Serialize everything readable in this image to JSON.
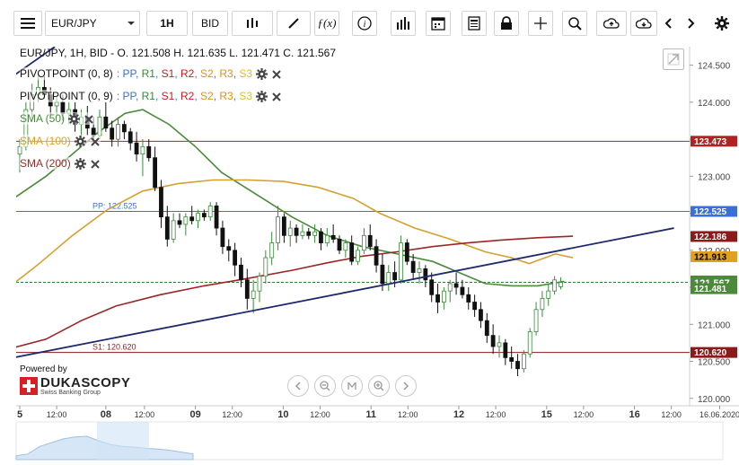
{
  "toolbar": {
    "menu_icon": "hamburger-menu-icon",
    "symbol": "EUR/JPY",
    "timeframe": "1H",
    "side": "BID",
    "icons": [
      "candlestick-icon",
      "draw-line-icon",
      "function-icon",
      "info-icon",
      "volume-bars-icon",
      "calendar-icon",
      "news-icon",
      "lock-icon",
      "crosshair-icon",
      "zoom-icon",
      "cloud-upload-icon",
      "cloud-download-icon",
      "chevron-left-icon",
      "chevron-right-icon",
      "gear-icon"
    ]
  },
  "ohlc_label": "EUR/JPY, 1H, BID - O. 121.508 H. 121.635 L. 121.471 C. 121.567",
  "indicators": [
    {
      "label": "PIVOTPOINT (0, 8)",
      "parts": [
        ": ",
        "PP",
        ", ",
        "R1",
        ", ",
        "S1",
        ", ",
        "R2",
        ", ",
        "S2",
        ", ",
        "R3",
        ", ",
        "S3"
      ]
    },
    {
      "label": "PIVOTPOINT (0, 9)",
      "parts": [
        ": ",
        "PP",
        ", ",
        "R1",
        ", ",
        "S1",
        ", ",
        "R2",
        ", ",
        "S2",
        ", ",
        "R3",
        ", ",
        "S3"
      ]
    },
    {
      "label": "SMA (50)",
      "color": "#4a8a3a"
    },
    {
      "label": "SMA (100)",
      "color": "#e0a020"
    },
    {
      "label": "SMA (200)",
      "color": "#a02828"
    }
  ],
  "pivot_colors": {
    "PP": "#3a6fd8",
    "R1": "#2f8f2f",
    "S1": "#c02020",
    "R2": "#c02020",
    "S2": "#e09020",
    "R3": "#e09020",
    "S3": "#e0c020"
  },
  "branding": {
    "powered": "Powered by",
    "name": "DUKASCOPY",
    "sub": "Swiss Banking Group"
  },
  "nav_icons": [
    "scroll-left-icon",
    "zoom-out-icon",
    "reset-zoom-icon",
    "zoom-in-icon",
    "scroll-right-icon"
  ],
  "chart_data": {
    "type": "candlestick",
    "symbol": "EUR/JPY",
    "timeframe": "1H",
    "y_range": [
      119.9,
      124.75
    ],
    "y_ticks": [
      "124.500",
      "124.000",
      "123.500",
      "123.000",
      "122.500",
      "122.000",
      "121.500",
      "121.000",
      "120.500",
      "120.000"
    ],
    "x_ticks": [
      "5",
      "12:00",
      "08",
      "12:00",
      "09",
      "12:00",
      "10",
      "12:00",
      "11",
      "12:00",
      "12",
      "12:00",
      "15",
      "12:00",
      "16",
      "12:00",
      "16.06.2020"
    ],
    "x_tick_bold": [
      true,
      false,
      true,
      false,
      true,
      false,
      true,
      false,
      true,
      false,
      true,
      false,
      true,
      false,
      true,
      false,
      false
    ],
    "price_labels": [
      {
        "text": "123.473",
        "value": 123.473,
        "bg": "#b22222",
        "fg": "#ffffff"
      },
      {
        "text": "122.525",
        "value": 122.525,
        "bg": "#3a6fd8",
        "fg": "#ffffff"
      },
      {
        "text": "122.186",
        "value": 122.186,
        "bg": "#8b1a1a",
        "fg": "#ffffff"
      },
      {
        "text": "121.913",
        "value": 121.913,
        "bg": "#e0a020",
        "fg": "#000000"
      },
      {
        "text": "121.567",
        "value": 121.567,
        "bg": "#4a8a3a",
        "fg": "#ffffff"
      },
      {
        "text": "121.481",
        "value": 121.481,
        "bg": "#4a8a3a",
        "fg": "#ffffff"
      },
      {
        "text": "120.620",
        "value": 120.62,
        "bg": "#8b1a1a",
        "fg": "#ffffff"
      }
    ],
    "levels": [
      {
        "name": "R1",
        "value": 123.473,
        "label": "",
        "color": "#b22222"
      },
      {
        "name": "PP",
        "value": 122.525,
        "label": "PP: 122.525",
        "color": "#3a6fd8"
      },
      {
        "name": "S1",
        "value": 120.62,
        "label": "S1: 120.620",
        "color": "#8b1a1a"
      },
      {
        "name": "last",
        "value": 121.567,
        "label": "",
        "color": "#2e7d2e"
      }
    ],
    "trendlines": [
      {
        "from": [
          -0.5,
          120.45
        ],
        "to": [
          7.45,
          122.3
        ],
        "color": "#1f2a6b"
      },
      {
        "from": [
          -0.5,
          124.0
        ],
        "to": [
          0.4,
          124.75
        ],
        "color": "#1f2a6b"
      }
    ],
    "candles": [
      {
        "t": 0.0,
        "o": 123.3,
        "h": 123.5,
        "l": 123.05,
        "c": 123.4
      },
      {
        "t": 0.07,
        "o": 123.4,
        "h": 124.0,
        "l": 123.35,
        "c": 123.9
      },
      {
        "t": 0.14,
        "o": 123.9,
        "h": 124.25,
        "l": 123.75,
        "c": 124.1
      },
      {
        "t": 0.21,
        "o": 124.1,
        "h": 124.35,
        "l": 124.0,
        "c": 124.2
      },
      {
        "t": 0.28,
        "o": 124.2,
        "h": 124.35,
        "l": 124.05,
        "c": 124.1
      },
      {
        "t": 0.35,
        "o": 124.1,
        "h": 124.2,
        "l": 123.8,
        "c": 123.95
      },
      {
        "t": 0.42,
        "o": 123.95,
        "h": 124.1,
        "l": 123.8,
        "c": 124.0
      },
      {
        "t": 0.49,
        "o": 124.0,
        "h": 124.1,
        "l": 123.75,
        "c": 123.85
      },
      {
        "t": 0.56,
        "o": 123.85,
        "h": 124.0,
        "l": 123.7,
        "c": 123.9
      },
      {
        "t": 0.63,
        "o": 123.9,
        "h": 124.0,
        "l": 123.6,
        "c": 123.7
      },
      {
        "t": 0.7,
        "o": 123.7,
        "h": 123.9,
        "l": 123.5,
        "c": 123.8
      },
      {
        "t": 0.77,
        "o": 123.8,
        "h": 123.95,
        "l": 123.55,
        "c": 123.65
      },
      {
        "t": 0.84,
        "o": 123.65,
        "h": 123.8,
        "l": 123.45,
        "c": 123.55
      },
      {
        "t": 0.91,
        "o": 123.55,
        "h": 123.9,
        "l": 123.5,
        "c": 123.8
      },
      {
        "t": 0.98,
        "o": 123.8,
        "h": 124.0,
        "l": 123.6,
        "c": 123.65
      },
      {
        "t": 1.05,
        "o": 123.65,
        "h": 123.75,
        "l": 123.4,
        "c": 123.5
      },
      {
        "t": 1.12,
        "o": 123.5,
        "h": 123.8,
        "l": 123.4,
        "c": 123.7
      },
      {
        "t": 1.19,
        "o": 123.7,
        "h": 123.75,
        "l": 123.5,
        "c": 123.6
      },
      {
        "t": 1.26,
        "o": 123.6,
        "h": 123.65,
        "l": 123.35,
        "c": 123.45
      },
      {
        "t": 1.33,
        "o": 123.45,
        "h": 123.6,
        "l": 123.2,
        "c": 123.3
      },
      {
        "t": 1.4,
        "o": 123.3,
        "h": 123.5,
        "l": 123.0,
        "c": 123.4
      },
      {
        "t": 1.47,
        "o": 123.4,
        "h": 123.5,
        "l": 123.2,
        "c": 123.25
      },
      {
        "t": 1.54,
        "o": 123.25,
        "h": 123.4,
        "l": 122.8,
        "c": 122.85
      },
      {
        "t": 1.61,
        "o": 122.85,
        "h": 122.95,
        "l": 122.3,
        "c": 122.45
      },
      {
        "t": 1.68,
        "o": 122.45,
        "h": 122.6,
        "l": 122.05,
        "c": 122.15
      },
      {
        "t": 1.75,
        "o": 122.15,
        "h": 122.5,
        "l": 122.1,
        "c": 122.4
      },
      {
        "t": 1.82,
        "o": 122.4,
        "h": 122.5,
        "l": 122.3,
        "c": 122.35
      },
      {
        "t": 1.89,
        "o": 122.35,
        "h": 122.5,
        "l": 122.2,
        "c": 122.45
      },
      {
        "t": 1.96,
        "o": 122.45,
        "h": 122.6,
        "l": 122.35,
        "c": 122.4
      },
      {
        "t": 2.03,
        "o": 122.4,
        "h": 122.55,
        "l": 122.3,
        "c": 122.5
      },
      {
        "t": 2.1,
        "o": 122.5,
        "h": 122.55,
        "l": 122.4,
        "c": 122.45
      },
      {
        "t": 2.17,
        "o": 122.45,
        "h": 122.65,
        "l": 122.4,
        "c": 122.6
      },
      {
        "t": 2.24,
        "o": 122.6,
        "h": 122.65,
        "l": 122.2,
        "c": 122.3
      },
      {
        "t": 2.31,
        "o": 122.3,
        "h": 122.4,
        "l": 121.95,
        "c": 122.05
      },
      {
        "t": 2.38,
        "o": 122.05,
        "h": 122.15,
        "l": 121.85,
        "c": 122.0
      },
      {
        "t": 2.45,
        "o": 122.0,
        "h": 122.1,
        "l": 121.65,
        "c": 121.8
      },
      {
        "t": 2.52,
        "o": 121.8,
        "h": 121.9,
        "l": 121.5,
        "c": 121.6
      },
      {
        "t": 2.59,
        "o": 121.6,
        "h": 121.75,
        "l": 121.2,
        "c": 121.35
      },
      {
        "t": 2.66,
        "o": 121.35,
        "h": 121.6,
        "l": 121.15,
        "c": 121.45
      },
      {
        "t": 2.73,
        "o": 121.45,
        "h": 121.7,
        "l": 121.3,
        "c": 121.65
      },
      {
        "t": 2.8,
        "o": 121.65,
        "h": 122.0,
        "l": 121.55,
        "c": 121.9
      },
      {
        "t": 2.87,
        "o": 121.9,
        "h": 122.25,
        "l": 121.8,
        "c": 122.1
      },
      {
        "t": 2.94,
        "o": 122.1,
        "h": 122.6,
        "l": 122.0,
        "c": 122.45
      },
      {
        "t": 3.01,
        "o": 122.45,
        "h": 122.5,
        "l": 122.1,
        "c": 122.2
      },
      {
        "t": 3.08,
        "o": 122.2,
        "h": 122.4,
        "l": 122.05,
        "c": 122.3
      },
      {
        "t": 3.15,
        "o": 122.3,
        "h": 122.35,
        "l": 122.1,
        "c": 122.2
      },
      {
        "t": 3.22,
        "o": 122.2,
        "h": 122.35,
        "l": 122.15,
        "c": 122.25
      },
      {
        "t": 3.29,
        "o": 122.25,
        "h": 122.3,
        "l": 122.15,
        "c": 122.2
      },
      {
        "t": 3.36,
        "o": 122.2,
        "h": 122.35,
        "l": 122.1,
        "c": 122.25
      },
      {
        "t": 3.43,
        "o": 122.25,
        "h": 122.3,
        "l": 122.0,
        "c": 122.1
      },
      {
        "t": 3.5,
        "o": 122.1,
        "h": 122.3,
        "l": 122.05,
        "c": 122.2
      },
      {
        "t": 3.57,
        "o": 122.2,
        "h": 122.35,
        "l": 122.1,
        "c": 122.15
      },
      {
        "t": 3.64,
        "o": 122.15,
        "h": 122.2,
        "l": 121.95,
        "c": 122.0
      },
      {
        "t": 3.71,
        "o": 122.0,
        "h": 122.15,
        "l": 121.9,
        "c": 122.1
      },
      {
        "t": 3.78,
        "o": 122.1,
        "h": 122.2,
        "l": 121.8,
        "c": 121.85
      },
      {
        "t": 3.85,
        "o": 121.85,
        "h": 122.05,
        "l": 121.8,
        "c": 122.0
      },
      {
        "t": 3.92,
        "o": 122.0,
        "h": 122.3,
        "l": 121.95,
        "c": 122.2
      },
      {
        "t": 3.99,
        "o": 122.2,
        "h": 122.35,
        "l": 122.0,
        "c": 122.05
      },
      {
        "t": 4.06,
        "o": 122.05,
        "h": 122.15,
        "l": 121.7,
        "c": 121.8
      },
      {
        "t": 4.13,
        "o": 121.8,
        "h": 121.95,
        "l": 121.45,
        "c": 121.55
      },
      {
        "t": 4.2,
        "o": 121.55,
        "h": 121.8,
        "l": 121.45,
        "c": 121.7
      },
      {
        "t": 4.27,
        "o": 121.7,
        "h": 121.85,
        "l": 121.5,
        "c": 121.6
      },
      {
        "t": 4.34,
        "o": 121.6,
        "h": 122.2,
        "l": 121.55,
        "c": 122.1
      },
      {
        "t": 4.41,
        "o": 122.1,
        "h": 122.15,
        "l": 121.8,
        "c": 121.85
      },
      {
        "t": 4.48,
        "o": 121.85,
        "h": 121.95,
        "l": 121.6,
        "c": 121.7
      },
      {
        "t": 4.55,
        "o": 121.7,
        "h": 121.85,
        "l": 121.55,
        "c": 121.75
      },
      {
        "t": 4.62,
        "o": 121.75,
        "h": 121.8,
        "l": 121.5,
        "c": 121.6
      },
      {
        "t": 4.69,
        "o": 121.6,
        "h": 121.7,
        "l": 121.3,
        "c": 121.4
      },
      {
        "t": 4.76,
        "o": 121.4,
        "h": 121.55,
        "l": 121.15,
        "c": 121.3
      },
      {
        "t": 4.83,
        "o": 121.3,
        "h": 121.5,
        "l": 121.2,
        "c": 121.45
      },
      {
        "t": 4.9,
        "o": 121.45,
        "h": 121.6,
        "l": 121.3,
        "c": 121.55
      },
      {
        "t": 4.97,
        "o": 121.55,
        "h": 121.7,
        "l": 121.4,
        "c": 121.5
      },
      {
        "t": 5.04,
        "o": 121.5,
        "h": 121.6,
        "l": 121.35,
        "c": 121.4
      },
      {
        "t": 5.11,
        "o": 121.4,
        "h": 121.5,
        "l": 121.2,
        "c": 121.3
      },
      {
        "t": 5.18,
        "o": 121.3,
        "h": 121.4,
        "l": 121.1,
        "c": 121.2
      },
      {
        "t": 5.25,
        "o": 121.2,
        "h": 121.3,
        "l": 120.95,
        "c": 121.05
      },
      {
        "t": 5.32,
        "o": 121.05,
        "h": 121.15,
        "l": 120.75,
        "c": 120.85
      },
      {
        "t": 5.39,
        "o": 120.85,
        "h": 121.0,
        "l": 120.6,
        "c": 120.7
      },
      {
        "t": 5.46,
        "o": 120.7,
        "h": 120.85,
        "l": 120.55,
        "c": 120.75
      },
      {
        "t": 5.53,
        "o": 120.75,
        "h": 120.8,
        "l": 120.45,
        "c": 120.55
      },
      {
        "t": 5.6,
        "o": 120.55,
        "h": 120.7,
        "l": 120.4,
        "c": 120.5
      },
      {
        "t": 5.67,
        "o": 120.5,
        "h": 120.6,
        "l": 120.3,
        "c": 120.4
      },
      {
        "t": 5.74,
        "o": 120.4,
        "h": 120.65,
        "l": 120.35,
        "c": 120.6
      },
      {
        "t": 5.81,
        "o": 120.6,
        "h": 120.95,
        "l": 120.55,
        "c": 120.9
      },
      {
        "t": 5.88,
        "o": 120.9,
        "h": 121.3,
        "l": 120.85,
        "c": 121.2
      },
      {
        "t": 5.95,
        "o": 121.2,
        "h": 121.45,
        "l": 121.1,
        "c": 121.35
      },
      {
        "t": 6.02,
        "o": 121.35,
        "h": 121.55,
        "l": 121.25,
        "c": 121.45
      },
      {
        "t": 6.09,
        "o": 121.45,
        "h": 121.65,
        "l": 121.4,
        "c": 121.6
      },
      {
        "t": 6.16,
        "o": 121.508,
        "h": 121.635,
        "l": 121.471,
        "c": 121.567
      }
    ],
    "sma": [
      {
        "name": "SMA (50)",
        "color": "#4a8a3a",
        "points": [
          [
            -0.5,
            122.35
          ],
          [
            0.3,
            123.0
          ],
          [
            0.6,
            123.3
          ],
          [
            0.9,
            123.6
          ],
          [
            1.2,
            123.85
          ],
          [
            1.4,
            123.9
          ],
          [
            1.7,
            123.7
          ],
          [
            2.0,
            123.4
          ],
          [
            2.3,
            123.05
          ],
          [
            2.7,
            122.75
          ],
          [
            3.1,
            122.45
          ],
          [
            3.5,
            122.2
          ],
          [
            3.9,
            122.05
          ],
          [
            4.3,
            121.95
          ],
          [
            4.7,
            121.85
          ],
          [
            5.0,
            121.7
          ],
          [
            5.3,
            121.55
          ],
          [
            5.6,
            121.52
          ],
          [
            5.9,
            121.52
          ],
          [
            6.2,
            121.58
          ]
        ]
      },
      {
        "name": "SMA (100)",
        "color": "#d4a030",
        "points": [
          [
            -0.5,
            121.15
          ],
          [
            0.2,
            121.8
          ],
          [
            0.6,
            122.2
          ],
          [
            1.0,
            122.55
          ],
          [
            1.4,
            122.8
          ],
          [
            1.8,
            122.9
          ],
          [
            2.2,
            122.95
          ],
          [
            2.6,
            122.95
          ],
          [
            3.0,
            122.93
          ],
          [
            3.4,
            122.85
          ],
          [
            3.8,
            122.7
          ],
          [
            4.1,
            122.5
          ],
          [
            4.5,
            122.3
          ],
          [
            4.9,
            122.15
          ],
          [
            5.3,
            121.98
          ],
          [
            5.6,
            121.9
          ],
          [
            5.8,
            121.82
          ],
          [
            6.1,
            121.95
          ],
          [
            6.3,
            121.9
          ]
        ]
      },
      {
        "name": "SMA (200)",
        "color": "#9c2525",
        "points": [
          [
            -0.5,
            120.55
          ],
          [
            0.3,
            120.8
          ],
          [
            0.7,
            121.05
          ],
          [
            1.1,
            121.25
          ],
          [
            1.6,
            121.4
          ],
          [
            2.1,
            121.52
          ],
          [
            2.6,
            121.62
          ],
          [
            3.1,
            121.73
          ],
          [
            3.5,
            121.83
          ],
          [
            3.9,
            121.92
          ],
          [
            4.3,
            121.98
          ],
          [
            4.7,
            122.05
          ],
          [
            5.1,
            122.1
          ],
          [
            5.5,
            122.14
          ],
          [
            5.9,
            122.17
          ],
          [
            6.3,
            122.19
          ]
        ]
      }
    ],
    "navigator": {
      "x_range": [
        0,
        1
      ],
      "values": [
        0.1,
        0.15,
        0.35,
        0.45,
        0.55,
        0.6,
        0.62,
        0.5,
        0.4,
        0.35,
        0.33,
        0.3,
        0.28,
        0.25,
        0.2,
        0.15
      ]
    }
  }
}
